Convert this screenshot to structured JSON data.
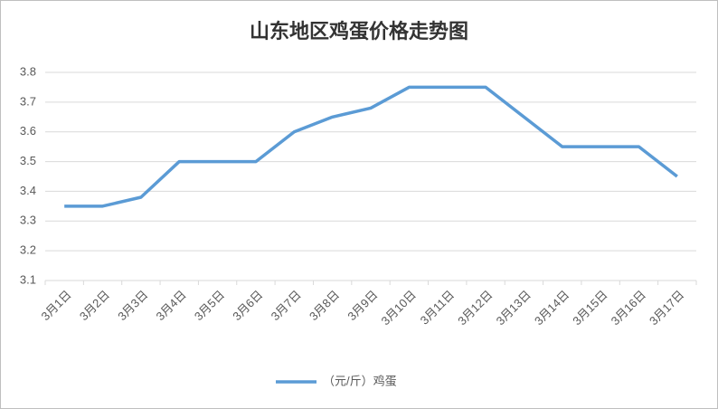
{
  "chart_data": {
    "type": "line",
    "title": "山东地区鸡蛋价格走势图",
    "categories": [
      "3月1日",
      "3月2日",
      "3月3日",
      "3月4日",
      "3月5日",
      "3月6日",
      "3月7日",
      "3月8日",
      "3月9日",
      "3月10日",
      "3月11日",
      "3月12日",
      "3月13日",
      "3月14日",
      "3月15日",
      "3月16日",
      "3月17日"
    ],
    "series": [
      {
        "name": "（元/斤）鸡蛋",
        "color": "#5b9bd5",
        "values": [
          3.35,
          3.35,
          3.38,
          3.5,
          3.5,
          3.5,
          3.6,
          3.65,
          3.68,
          3.75,
          3.75,
          3.75,
          3.65,
          3.55,
          3.55,
          3.55,
          3.45
        ]
      }
    ],
    "ylim": [
      3.1,
      3.8
    ],
    "yticks": [
      3.1,
      3.2,
      3.3,
      3.4,
      3.5,
      3.6,
      3.7,
      3.8
    ],
    "grid": true,
    "legend": "bottom"
  }
}
